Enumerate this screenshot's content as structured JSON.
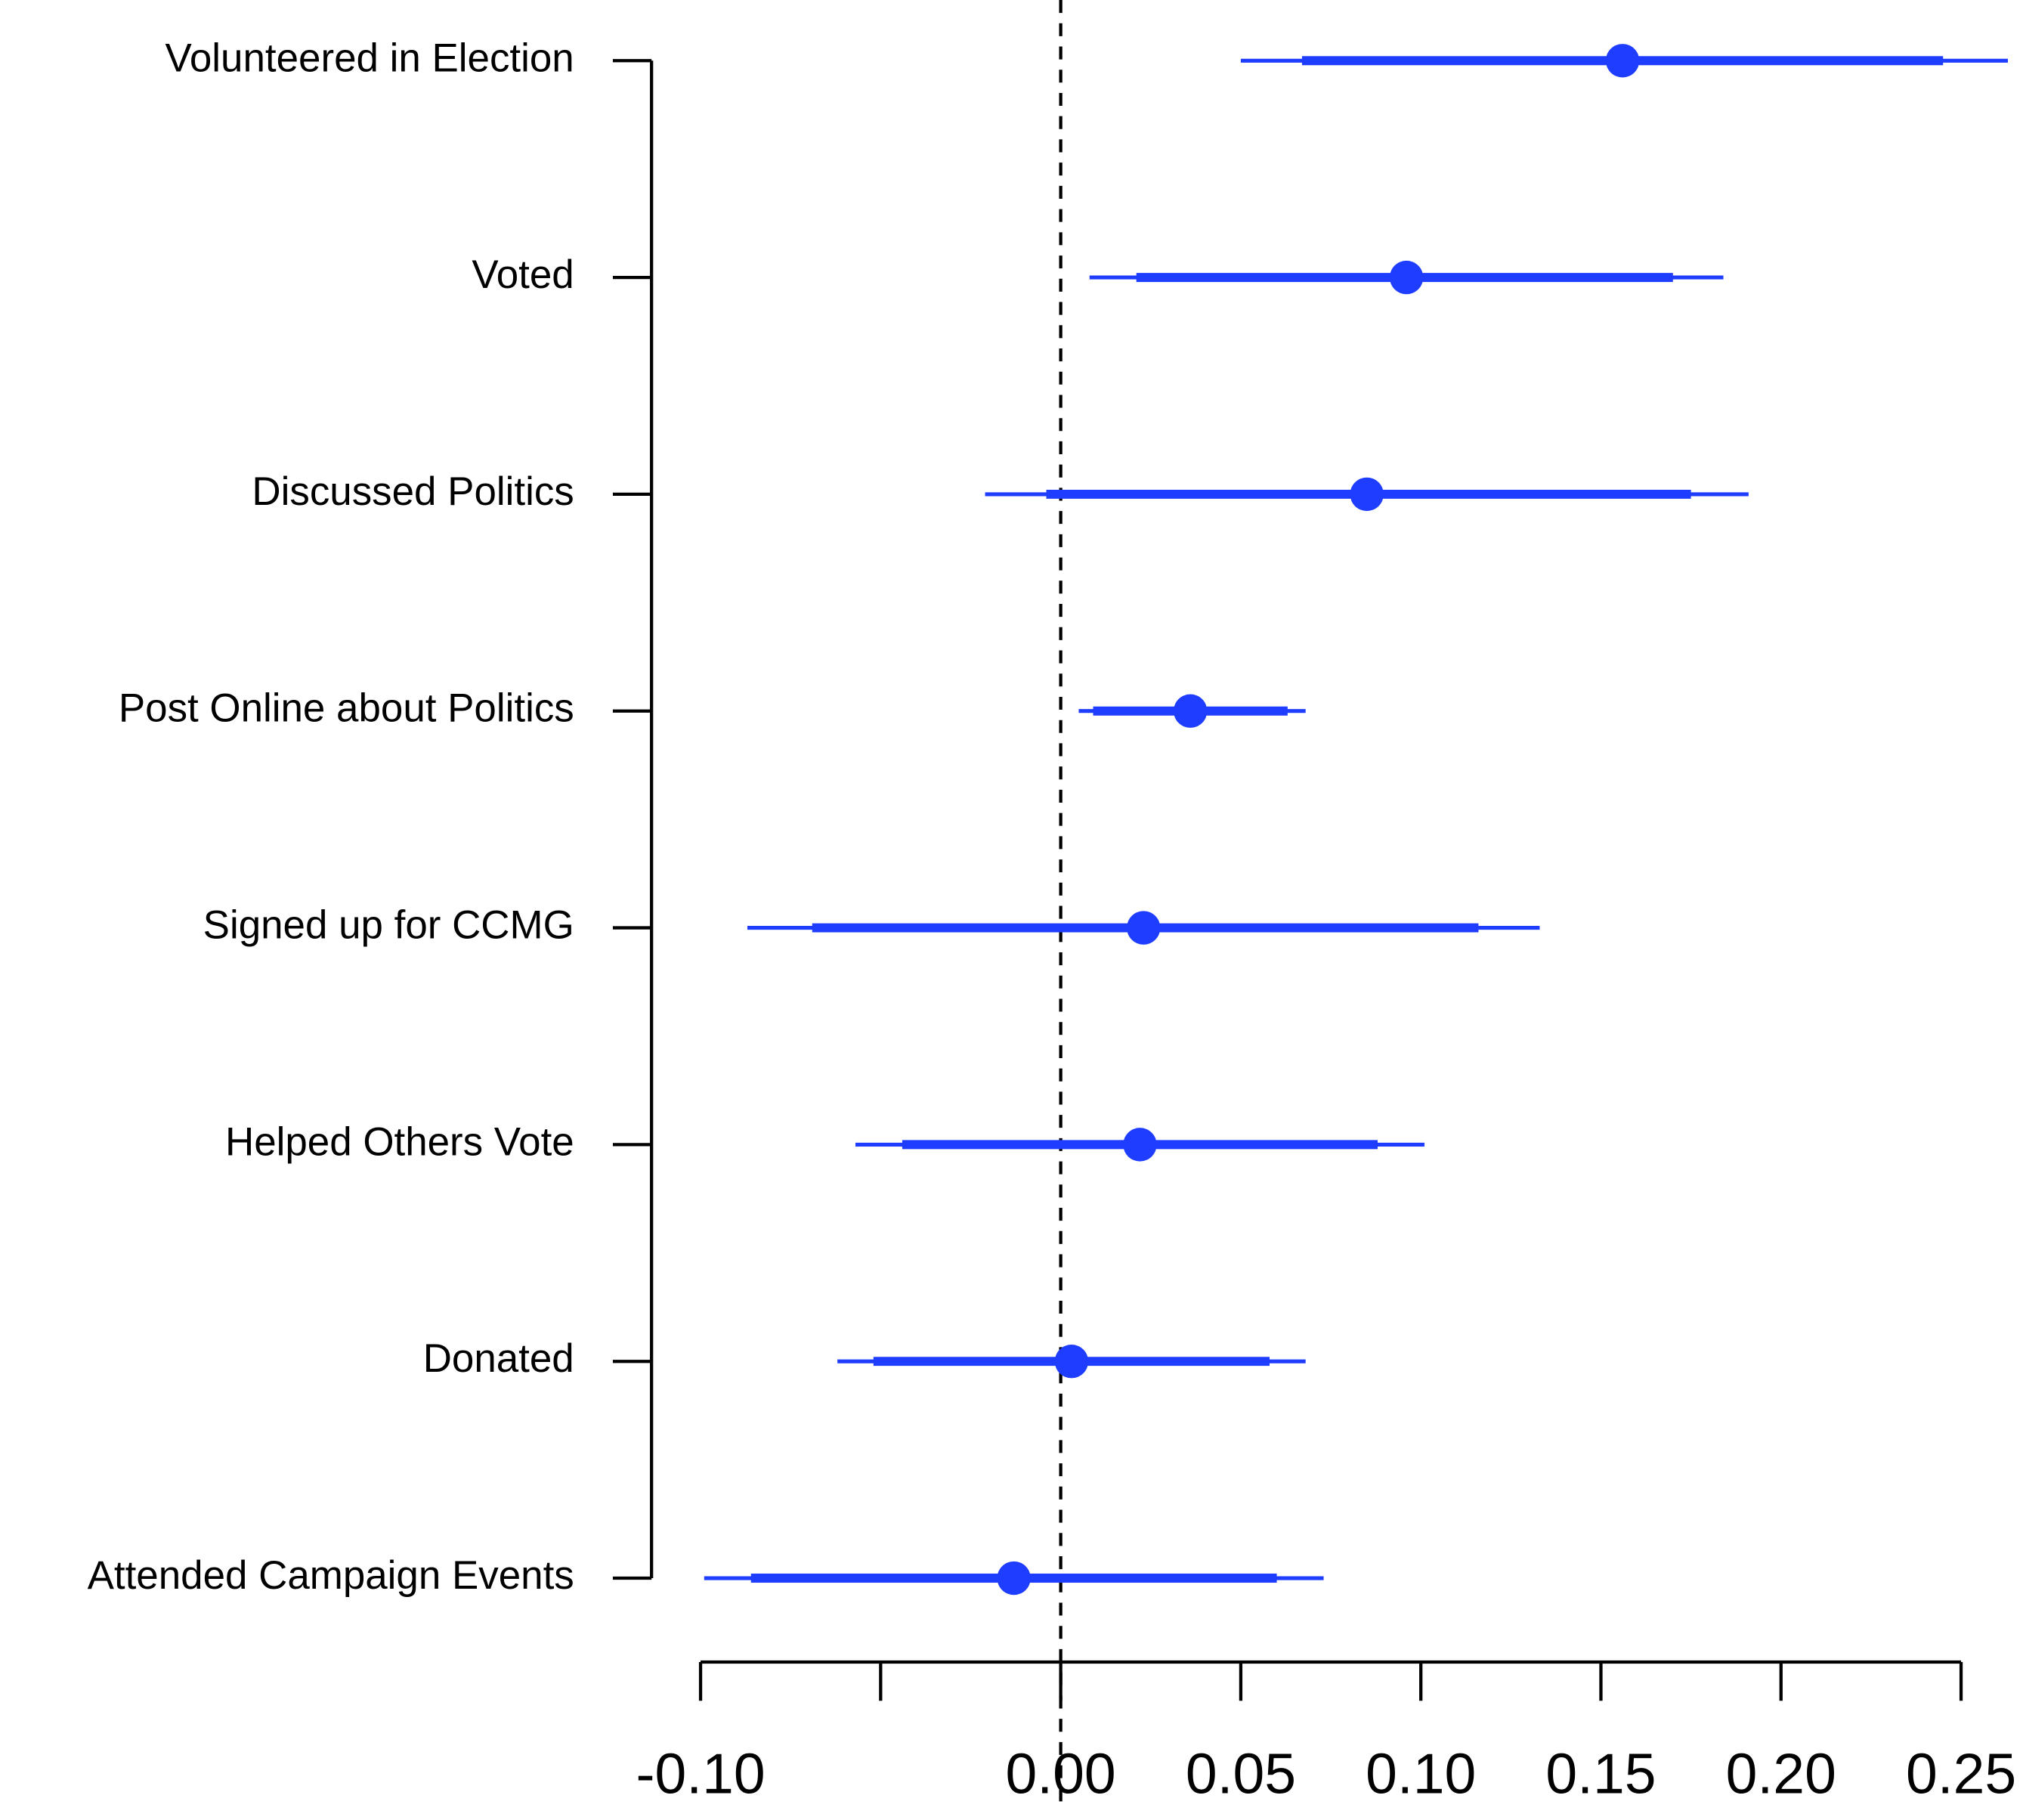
{
  "chart_data": {
    "type": "coefficient",
    "categories": [
      "Volunteered in Election",
      "Voted",
      "Discussed Politics",
      "Post Online about Politics",
      "Signed up for CCMG",
      "Helped Others Vote",
      "Donated",
      "Attended Campaign Events"
    ],
    "values": [
      0.156,
      0.096,
      0.085,
      0.036,
      0.023,
      0.022,
      0.003,
      -0.013
    ],
    "inner_low": [
      0.067,
      0.021,
      -0.004,
      0.009,
      -0.069,
      -0.044,
      -0.052,
      -0.086
    ],
    "inner_high": [
      0.245,
      0.17,
      0.175,
      0.063,
      0.116,
      0.088,
      0.058,
      0.06
    ],
    "outer_low": [
      0.05,
      0.008,
      -0.021,
      0.005,
      -0.087,
      -0.057,
      -0.062,
      -0.099
    ],
    "outer_high": [
      0.263,
      0.184,
      0.191,
      0.068,
      0.133,
      0.101,
      0.068,
      0.073
    ],
    "color": "#1f3dff",
    "reference_line": 0,
    "xlim": [
      -0.1,
      0.25
    ],
    "xticks": [
      {
        "value": -0.1,
        "label": "-0.10"
      },
      {
        "value": -0.05
      },
      {
        "value": 0,
        "label": "0.00"
      },
      0.05,
      {
        "value": 0.1,
        "label": "0.10"
      },
      0.15,
      {
        "value": 0.2,
        "label": "0.20"
      },
      0.25
    ]
  }
}
